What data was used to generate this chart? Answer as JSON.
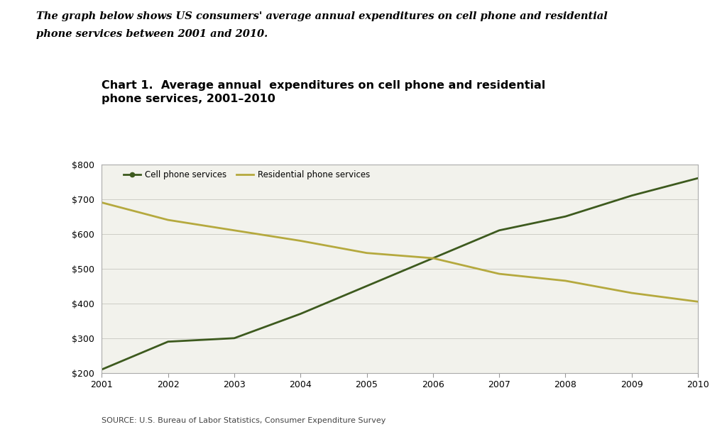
{
  "title": "Chart 1.  Average annual  expenditures on cell phone and residential\nphone services, 2001–2010",
  "subtitle_line1": "The graph below shows US consumers' average annual expenditures on cell phone and residential",
  "subtitle_line2": "phone services between 2001 and 2010.",
  "source": "SOURCE: U.S. Bureau of Labor Statistics, Consumer Expenditure Survey",
  "years": [
    2001,
    2002,
    2003,
    2004,
    2005,
    2006,
    2007,
    2008,
    2009,
    2010
  ],
  "cell_phone": [
    210,
    290,
    300,
    370,
    450,
    530,
    610,
    650,
    710,
    760
  ],
  "residential": [
    690,
    640,
    610,
    580,
    545,
    530,
    485,
    465,
    430,
    405
  ],
  "cell_color": "#3d5a1e",
  "residential_color": "#b5a93e",
  "ylim": [
    200,
    800
  ],
  "yticks": [
    200,
    300,
    400,
    500,
    600,
    700,
    800
  ],
  "background_color": "#ffffff",
  "plot_bg_color": "#f2f2ec",
  "cell_label": "Cell phone services",
  "residential_label": "Residential phone services",
  "title_fontsize": 11.5,
  "subtitle_fontsize": 10.5,
  "source_fontsize": 8,
  "tick_fontsize": 9,
  "legend_fontsize": 8.5
}
